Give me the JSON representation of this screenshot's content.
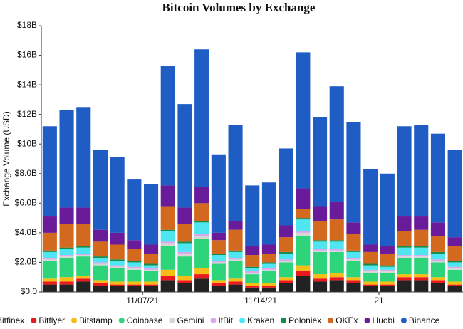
{
  "chart_data": {
    "type": "stacked_bar",
    "title": "Bitcoin Volumes by Exchange",
    "y_label": "Exchange Volume (USD)",
    "categories": [
      null,
      null,
      null,
      null,
      null,
      null,
      "11/07/21",
      null,
      null,
      null,
      null,
      null,
      null,
      "11/14/21",
      null,
      null,
      null,
      null,
      null,
      null,
      "21",
      null,
      null,
      null,
      null
    ],
    "ylim": [
      0,
      18
    ],
    "yticks": [
      {
        "value": 0,
        "label": "$0.0"
      },
      {
        "value": 2,
        "label": "$2.0B"
      },
      {
        "value": 4,
        "label": "$4.0B"
      },
      {
        "value": 6,
        "label": "$6.0B"
      },
      {
        "value": 8,
        "label": "$8.0B"
      },
      {
        "value": 10,
        "label": "$10B"
      },
      {
        "value": 12,
        "label": "$12B"
      },
      {
        "value": 14,
        "label": "$14B"
      },
      {
        "value": 16,
        "label": "$16B"
      },
      {
        "value": 18,
        "label": "$18B"
      }
    ],
    "legend": "bottom",
    "grid": false,
    "series": [
      {
        "name": "Bitfinex",
        "color": "#222222",
        "values": [
          0.5,
          0.5,
          0.7,
          0.4,
          0.4,
          0.4,
          0.4,
          0.8,
          0.6,
          0.9,
          0.4,
          0.5,
          0.3,
          0.3,
          0.6,
          1.1,
          0.7,
          0.8,
          0.6,
          0.4,
          0.4,
          0.8,
          0.8,
          0.6,
          0.4
        ]
      },
      {
        "name": "Bitflyer",
        "color": "#e8191f",
        "values": [
          0.2,
          0.2,
          0.2,
          0.2,
          0.1,
          0.1,
          0.1,
          0.3,
          0.2,
          0.3,
          0.2,
          0.2,
          0.1,
          0.1,
          0.2,
          0.3,
          0.2,
          0.2,
          0.2,
          0.1,
          0.1,
          0.2,
          0.2,
          0.2,
          0.1
        ]
      },
      {
        "name": "Bitstamp",
        "color": "#f6bd16",
        "values": [
          0.2,
          0.3,
          0.2,
          0.2,
          0.2,
          0.2,
          0.2,
          0.4,
          0.3,
          0.4,
          0.2,
          0.2,
          0.2,
          0.2,
          0.2,
          0.4,
          0.3,
          0.3,
          0.2,
          0.2,
          0.2,
          0.2,
          0.2,
          0.2,
          0.2
        ]
      },
      {
        "name": "Coinbase",
        "color": "#2ed47a",
        "values": [
          1.2,
          1.3,
          1.3,
          1.0,
          0.9,
          0.8,
          0.7,
          1.6,
          1.3,
          2.0,
          1.1,
          1.2,
          0.6,
          0.8,
          1.0,
          2.0,
          1.5,
          1.4,
          1.1,
          0.6,
          0.6,
          1.1,
          1.1,
          1.0,
          0.8
        ]
      },
      {
        "name": "Gemini",
        "color": "#d6d6d6",
        "values": [
          0.1,
          0.1,
          0.1,
          0.1,
          0.1,
          0.1,
          0.1,
          0.2,
          0.2,
          0.2,
          0.1,
          0.1,
          0.1,
          0.1,
          0.1,
          0.2,
          0.1,
          0.1,
          0.1,
          0.1,
          0.1,
          0.1,
          0.1,
          0.1,
          0.1
        ]
      },
      {
        "name": "ItBit",
        "color": "#d9a8ea",
        "values": [
          0.1,
          0.1,
          0.1,
          0.1,
          0.1,
          0.1,
          0.1,
          0.1,
          0.1,
          0.1,
          0.1,
          0.1,
          0.1,
          0.1,
          0.1,
          0.1,
          0.1,
          0.1,
          0.1,
          0.1,
          0.1,
          0.1,
          0.1,
          0.1,
          0.1
        ]
      },
      {
        "name": "Kraken",
        "color": "#4fe6f2",
        "values": [
          0.4,
          0.4,
          0.4,
          0.3,
          0.3,
          0.3,
          0.2,
          0.7,
          0.6,
          0.8,
          0.4,
          0.4,
          0.2,
          0.3,
          0.4,
          0.8,
          0.5,
          0.5,
          0.4,
          0.3,
          0.2,
          0.5,
          0.5,
          0.4,
          0.3
        ]
      },
      {
        "name": "Poloniex",
        "color": "#178a4c",
        "values": [
          0.1,
          0.1,
          0.1,
          0.1,
          0.1,
          0.1,
          0.1,
          0.1,
          0.1,
          0.1,
          0.1,
          0.1,
          0.1,
          0.1,
          0.1,
          0.1,
          0.1,
          0.1,
          0.1,
          0.1,
          0.1,
          0.1,
          0.1,
          0.1,
          0.1
        ]
      },
      {
        "name": "OKEx",
        "color": "#d2691e",
        "values": [
          1.2,
          1.6,
          1.5,
          1.0,
          1.0,
          0.8,
          0.7,
          1.6,
          1.2,
          1.2,
          0.9,
          1.4,
          0.8,
          0.6,
          1.0,
          0.6,
          1.3,
          1.4,
          1.1,
          0.8,
          0.8,
          1.0,
          1.1,
          1.1,
          1.0
        ]
      },
      {
        "name": "Huobi",
        "color": "#6a1b9a",
        "values": [
          1.1,
          1.1,
          1.1,
          0.8,
          0.8,
          0.6,
          0.6,
          1.4,
          1.1,
          1.1,
          0.5,
          0.6,
          0.6,
          0.6,
          0.8,
          1.4,
          1.0,
          1.2,
          0.8,
          0.5,
          0.5,
          1.0,
          0.9,
          0.9,
          0.6
        ]
      },
      {
        "name": "Binance",
        "color": "#1f5cc4",
        "values": [
          6.1,
          6.6,
          6.8,
          5.4,
          5.1,
          4.1,
          4.1,
          8.1,
          7.0,
          9.3,
          5.3,
          6.5,
          4.1,
          4.2,
          5.2,
          9.2,
          6.0,
          7.8,
          6.8,
          5.1,
          4.9,
          6.1,
          6.2,
          6.0,
          5.9
        ]
      }
    ]
  }
}
